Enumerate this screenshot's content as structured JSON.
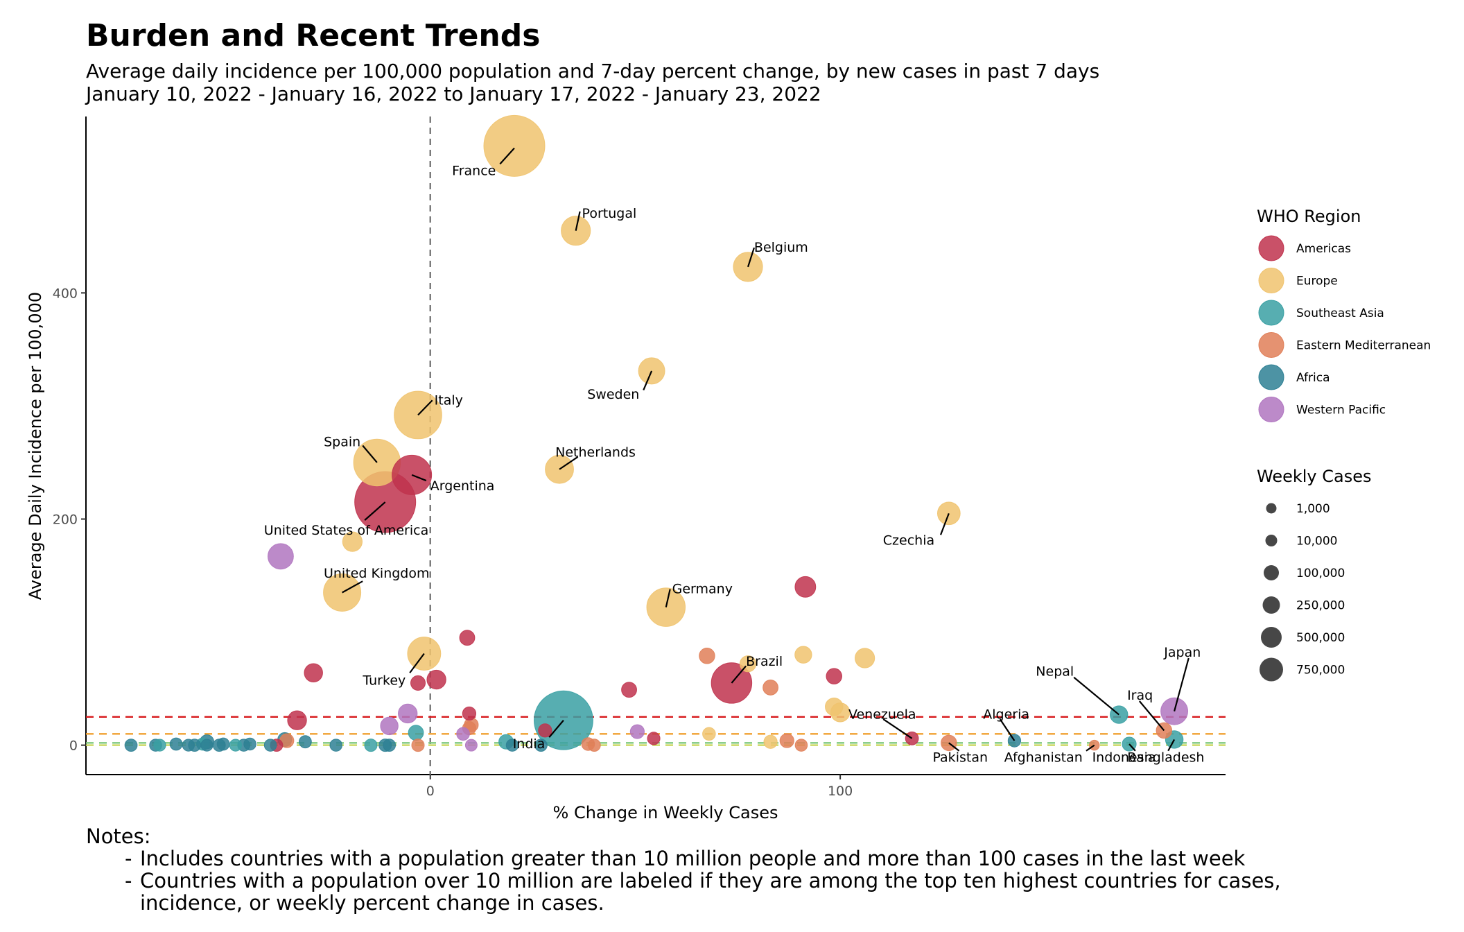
{
  "title": "Burden and Recent Trends",
  "subtitle_line1": "Average daily incidence per 100,000 population and 7-day percent change, by new cases in past 7 days",
  "subtitle_line2": "January 10, 2022 - January 16, 2022 to January 17, 2022 - January 23, 2022",
  "notes": {
    "heading": "Notes:",
    "items": [
      "Includes countries with a population greater than 10 million people and more than 100 cases in the last week",
      "Countries with a population over 10 million are labeled if they are among the top ten highest countries for cases, incidence, or weekly percent change in cases."
    ]
  },
  "chart_data": {
    "type": "scatter",
    "xlabel": "% Change in Weekly Cases",
    "ylabel": "Average Daily Incidence per 100,000",
    "xlim": [
      -84,
      194
    ],
    "ylim": [
      -26,
      556
    ],
    "xticks": [
      0,
      100
    ],
    "yticks": [
      0,
      200,
      400
    ],
    "grid": false,
    "vertical_reference": {
      "x": 0,
      "color": "#777777",
      "style": "dashed"
    },
    "horizontal_references": [
      {
        "y": 25,
        "color": "#d7191c"
      },
      {
        "y": 10,
        "color": "#f0a030"
      },
      {
        "y": 2,
        "color": "#7fc97f"
      },
      {
        "y": 0,
        "color": "#c8d65c"
      }
    ],
    "legend_position": "right",
    "region_legend": {
      "title": "WHO Region",
      "items": [
        {
          "name": "Americas",
          "color": "#c0334d"
        },
        {
          "name": "Europe",
          "color": "#f0c36e"
        },
        {
          "name": "Southeast Asia",
          "color": "#39a0a3"
        },
        {
          "name": "Eastern Mediterranean",
          "color": "#e07f58"
        },
        {
          "name": "Africa",
          "color": "#2e8094"
        },
        {
          "name": "Western Pacific",
          "color": "#b075c0"
        }
      ]
    },
    "size_legend": {
      "title": "Weekly Cases",
      "items": [
        {
          "label": "1,000",
          "value": 1000
        },
        {
          "label": "10,000",
          "value": 10000
        },
        {
          "label": "100,000",
          "value": 100000
        },
        {
          "label": "250,000",
          "value": 250000
        },
        {
          "label": "500,000",
          "value": 500000
        },
        {
          "label": "750,000",
          "value": 750000
        }
      ]
    },
    "points": [
      {
        "label": "France",
        "x": 20.5,
        "y": 530,
        "cases": 2500000,
        "region": "Europe"
      },
      {
        "label": "Portugal",
        "x": 35.5,
        "y": 455,
        "cases": 330000,
        "region": "Europe"
      },
      {
        "label": "Belgium",
        "x": 77.5,
        "y": 423,
        "cases": 330000,
        "region": "Europe"
      },
      {
        "label": "Sweden",
        "x": 54,
        "y": 331,
        "cases": 240000,
        "region": "Europe"
      },
      {
        "label": "Italy",
        "x": -3,
        "y": 292,
        "cases": 1200000,
        "region": "Europe"
      },
      {
        "label": "Spain",
        "x": -13,
        "y": 250,
        "cases": 1150000,
        "region": "Europe"
      },
      {
        "label": "Netherlands",
        "x": 31.5,
        "y": 244,
        "cases": 300000,
        "region": "Europe"
      },
      {
        "label": "Argentina",
        "x": -4.5,
        "y": 239,
        "cases": 750000,
        "region": "Americas"
      },
      {
        "label": "United States of America",
        "x": -11,
        "y": 215,
        "cases": 4900000,
        "region": "Americas"
      },
      {
        "label": "Czechia",
        "x": 126.5,
        "y": 205,
        "cases": 150000,
        "region": "Europe"
      },
      {
        "label": "United Kingdom",
        "x": -21.5,
        "y": 135,
        "cases": 650000,
        "region": "Europe"
      },
      {
        "label": "Germany",
        "x": 57.5,
        "y": 122,
        "cases": 700000,
        "region": "Europe"
      },
      {
        "label": "Turkey",
        "x": -1.5,
        "y": 81,
        "cases": 470000,
        "region": "Europe"
      },
      {
        "label": "Brazil",
        "x": 73.5,
        "y": 55,
        "cases": 800000,
        "region": "Americas"
      },
      {
        "label": "India",
        "x": 32.5,
        "y": 22,
        "cases": 2000000,
        "region": "Southeast Asia"
      },
      {
        "label": "Venezuela",
        "x": 117.5,
        "y": 6,
        "cases": 13000,
        "region": "Americas"
      },
      {
        "label": "Pakistan",
        "x": 126.5,
        "y": 2,
        "cases": 35000,
        "region": "Eastern Mediterranean"
      },
      {
        "label": "Algeria",
        "x": 142.5,
        "y": 4,
        "cases": 11000,
        "region": "Africa"
      },
      {
        "label": "Afghanistan",
        "x": 162,
        "y": 0,
        "cases": 900,
        "region": "Eastern Mediterranean"
      },
      {
        "label": "Nepal",
        "x": 168,
        "y": 27,
        "cases": 60000,
        "region": "Southeast Asia"
      },
      {
        "label": "Indonesia",
        "x": 170.5,
        "y": 1,
        "cases": 20000,
        "region": "Southeast Asia"
      },
      {
        "label": "Iraq",
        "x": 179,
        "y": 13,
        "cases": 35000,
        "region": "Eastern Mediterranean"
      },
      {
        "label": "Japan",
        "x": 181.5,
        "y": 30,
        "cases": 260000,
        "region": "Western Pacific"
      },
      {
        "label": "Bangladesh",
        "x": 181.5,
        "y": 5,
        "cases": 60000,
        "region": "Southeast Asia"
      },
      {
        "label": "",
        "x": -36.5,
        "y": 167,
        "cases": 220000,
        "region": "Western Pacific"
      },
      {
        "label": "",
        "x": -19,
        "y": 180,
        "cases": 90000,
        "region": "Europe"
      },
      {
        "label": "",
        "x": 9,
        "y": 95,
        "cases": 30000,
        "region": "Americas"
      },
      {
        "label": "",
        "x": -28.5,
        "y": 64,
        "cases": 70000,
        "region": "Americas"
      },
      {
        "label": "",
        "x": 1.5,
        "y": 58,
        "cases": 80000,
        "region": "Americas"
      },
      {
        "label": "",
        "x": -3,
        "y": 55,
        "cases": 25000,
        "region": "Americas"
      },
      {
        "label": "",
        "x": 91.5,
        "y": 140,
        "cases": 110000,
        "region": "Americas"
      },
      {
        "label": "",
        "x": 91,
        "y": 80,
        "cases": 50000,
        "region": "Europe"
      },
      {
        "label": "",
        "x": 106,
        "y": 77,
        "cases": 90000,
        "region": "Europe"
      },
      {
        "label": "",
        "x": 67.5,
        "y": 79,
        "cases": 35000,
        "region": "Eastern Mediterranean"
      },
      {
        "label": "",
        "x": 77.5,
        "y": 72,
        "cases": 40000,
        "region": "Europe"
      },
      {
        "label": "",
        "x": 98.5,
        "y": 61,
        "cases": 35000,
        "region": "Americas"
      },
      {
        "label": "",
        "x": 83,
        "y": 51,
        "cases": 30000,
        "region": "Eastern Mediterranean"
      },
      {
        "label": "",
        "x": 48.5,
        "y": 49,
        "cases": 30000,
        "region": "Americas"
      },
      {
        "label": "",
        "x": 98.5,
        "y": 34,
        "cases": 60000,
        "region": "Europe"
      },
      {
        "label": "",
        "x": 100,
        "y": 29,
        "cases": 80000,
        "region": "Europe"
      },
      {
        "label": "",
        "x": -32.5,
        "y": 22,
        "cases": 80000,
        "region": "Americas"
      },
      {
        "label": "",
        "x": -5.5,
        "y": 28,
        "cases": 80000,
        "region": "Western Pacific"
      },
      {
        "label": "",
        "x": -10,
        "y": 17,
        "cases": 60000,
        "region": "Western Pacific"
      },
      {
        "label": "",
        "x": 9.5,
        "y": 28,
        "cases": 15000,
        "region": "Americas"
      },
      {
        "label": "",
        "x": 10,
        "y": 18,
        "cases": 20000,
        "region": "Eastern Mediterranean"
      },
      {
        "label": "",
        "x": 9.5,
        "y": 15,
        "cases": 15000,
        "region": "Eastern Mediterranean"
      },
      {
        "label": "",
        "x": 8,
        "y": 10,
        "cases": 12000,
        "region": "Western Pacific"
      },
      {
        "label": "",
        "x": -3.5,
        "y": 11,
        "cases": 30000,
        "region": "Southeast Asia"
      },
      {
        "label": "",
        "x": 50.5,
        "y": 12,
        "cases": 20000,
        "region": "Western Pacific"
      },
      {
        "label": "",
        "x": 28,
        "y": 13,
        "cases": 15000,
        "region": "Americas"
      },
      {
        "label": "",
        "x": 68,
        "y": 10,
        "cases": 12000,
        "region": "Europe"
      },
      {
        "label": "",
        "x": 54.5,
        "y": 6,
        "cases": 10000,
        "region": "Americas"
      },
      {
        "label": "",
        "x": 87,
        "y": 4,
        "cases": 20000,
        "region": "Eastern Mediterranean"
      },
      {
        "label": "",
        "x": 83,
        "y": 3,
        "cases": 15000,
        "region": "Europe"
      },
      {
        "label": "",
        "x": 90.5,
        "y": 0,
        "cases": 8000,
        "region": "Eastern Mediterranean"
      },
      {
        "label": "",
        "x": 18.5,
        "y": 3,
        "cases": 25000,
        "region": "Southeast Asia"
      },
      {
        "label": "",
        "x": 20,
        "y": 0,
        "cases": 8000,
        "region": "Africa"
      },
      {
        "label": "",
        "x": 27,
        "y": 0,
        "cases": 9000,
        "region": "Africa"
      },
      {
        "label": "",
        "x": 38.5,
        "y": 1,
        "cases": 12000,
        "region": "Eastern Mediterranean"
      },
      {
        "label": "",
        "x": 40,
        "y": 0,
        "cases": 9000,
        "region": "Eastern Mediterranean"
      },
      {
        "label": "",
        "x": 10,
        "y": 0,
        "cases": 6000,
        "region": "Western Pacific"
      },
      {
        "label": "",
        "x": -3,
        "y": 0,
        "cases": 10000,
        "region": "Eastern Mediterranean"
      },
      {
        "label": "",
        "x": -14.5,
        "y": 0,
        "cases": 10000,
        "region": "Southeast Asia"
      },
      {
        "label": "",
        "x": -11,
        "y": 0,
        "cases": 10000,
        "region": "Africa"
      },
      {
        "label": "",
        "x": -10,
        "y": 0,
        "cases": 9000,
        "region": "Africa"
      },
      {
        "label": "",
        "x": -23,
        "y": 0,
        "cases": 8000,
        "region": "Africa"
      },
      {
        "label": "",
        "x": -30.5,
        "y": 3,
        "cases": 9000,
        "region": "Africa"
      },
      {
        "label": "",
        "x": -35.5,
        "y": 5,
        "cases": 20000,
        "region": "Africa"
      },
      {
        "label": "",
        "x": -35,
        "y": 4,
        "cases": 20000,
        "region": "Eastern Mediterranean"
      },
      {
        "label": "",
        "x": -37.5,
        "y": 0,
        "cases": 9000,
        "region": "Americas"
      },
      {
        "label": "",
        "x": -39,
        "y": 0,
        "cases": 8000,
        "region": "Africa"
      },
      {
        "label": "",
        "x": -44,
        "y": 1,
        "cases": 8000,
        "region": "Africa"
      },
      {
        "label": "",
        "x": -45.5,
        "y": 0,
        "cases": 8000,
        "region": "Africa"
      },
      {
        "label": "",
        "x": -47.5,
        "y": 0,
        "cases": 7000,
        "region": "Southeast Asia"
      },
      {
        "label": "",
        "x": -50.5,
        "y": 1,
        "cases": 9000,
        "region": "Africa"
      },
      {
        "label": "",
        "x": -51.5,
        "y": 0,
        "cases": 9000,
        "region": "Africa"
      },
      {
        "label": "",
        "x": -54.5,
        "y": 0,
        "cases": 7000,
        "region": "Africa"
      },
      {
        "label": "",
        "x": -54.5,
        "y": 3,
        "cases": 20000,
        "region": "Africa"
      },
      {
        "label": "",
        "x": -55.5,
        "y": 1,
        "cases": 9000,
        "region": "Southeast Asia"
      },
      {
        "label": "",
        "x": -57.5,
        "y": 0,
        "cases": 9000,
        "region": "Africa"
      },
      {
        "label": "",
        "x": -59,
        "y": 0,
        "cases": 7000,
        "region": "Africa"
      },
      {
        "label": "",
        "x": -62,
        "y": 1,
        "cases": 9000,
        "region": "Africa"
      },
      {
        "label": "",
        "x": -66,
        "y": 0,
        "cases": 7000,
        "region": "Southeast Asia"
      },
      {
        "label": "",
        "x": -67,
        "y": 0,
        "cases": 8000,
        "region": "Africa"
      },
      {
        "label": "",
        "x": -73,
        "y": 0,
        "cases": 9000,
        "region": "Africa"
      }
    ],
    "labels": [
      {
        "text": "France",
        "x": 16,
        "y": 508,
        "anchor": "end",
        "lx1": 20.5,
        "ly1": 528,
        "lx2": 17,
        "ly2": 514
      },
      {
        "text": "Portugal",
        "x": 37,
        "y": 470,
        "anchor": "start",
        "lx1": 35.5,
        "ly1": 455,
        "lx2": 36.5,
        "ly2": 472
      },
      {
        "text": "Belgium",
        "x": 79,
        "y": 440,
        "anchor": "start",
        "lx1": 77.5,
        "ly1": 423,
        "lx2": 79,
        "ly2": 440
      },
      {
        "text": "Sweden",
        "x": 51,
        "y": 310,
        "anchor": "end",
        "lx1": 54,
        "ly1": 331,
        "lx2": 52,
        "ly2": 314
      },
      {
        "text": "Italy",
        "x": 1,
        "y": 305,
        "anchor": "start",
        "lx1": -3,
        "ly1": 292,
        "lx2": 0.5,
        "ly2": 305
      },
      {
        "text": "Spain",
        "x": -17,
        "y": 268,
        "anchor": "end",
        "lx1": -13,
        "ly1": 250,
        "lx2": -16.5,
        "ly2": 265
      },
      {
        "text": "Netherlands",
        "x": 30.5,
        "y": 259,
        "anchor": "start",
        "lx1": 31.5,
        "ly1": 244,
        "lx2": 36,
        "ly2": 255
      },
      {
        "text": "Argentina",
        "x": 0,
        "y": 229,
        "anchor": "start",
        "lx1": -4.5,
        "ly1": 239,
        "lx2": -1,
        "ly2": 234
      },
      {
        "text": "United States of America",
        "x": -20.5,
        "y": 190,
        "anchor": "middle",
        "lx1": -11,
        "ly1": 215,
        "lx2": -16,
        "ly2": 199
      },
      {
        "text": "Czechia",
        "x": 123,
        "y": 181,
        "anchor": "end",
        "lx1": 126.5,
        "ly1": 205,
        "lx2": 124.5,
        "ly2": 186
      },
      {
        "text": "United Kingdom",
        "x": -26,
        "y": 152,
        "anchor": "start",
        "lx1": -21.5,
        "ly1": 135,
        "lx2": -16.5,
        "ly2": 145
      },
      {
        "text": "Germany",
        "x": 59,
        "y": 138,
        "anchor": "start",
        "lx1": 57.5,
        "ly1": 122,
        "lx2": 58.5,
        "ly2": 138
      },
      {
        "text": "Turkey",
        "x": -6,
        "y": 57,
        "anchor": "end",
        "lx1": -1.5,
        "ly1": 81,
        "lx2": -5,
        "ly2": 64
      },
      {
        "text": "Brazil",
        "x": 77,
        "y": 74,
        "anchor": "start",
        "lx1": 73.5,
        "ly1": 55,
        "lx2": 77,
        "ly2": 70
      },
      {
        "text": "India",
        "x": 28,
        "y": 1,
        "anchor": "end",
        "lx1": 32.5,
        "ly1": 22,
        "lx2": 29,
        "ly2": 7
      },
      {
        "text": "Venezuela",
        "x": 102,
        "y": 27,
        "anchor": "start",
        "lx1": 117.5,
        "ly1": 6,
        "lx2": 110.5,
        "ly2": 23
      },
      {
        "text": "Pakistan",
        "x": 136,
        "y": -11,
        "anchor": "end",
        "lx1": 126.5,
        "ly1": 2,
        "lx2": 129,
        "ly2": -5
      },
      {
        "text": "Algeria",
        "x": 140.5,
        "y": 27,
        "anchor": "middle",
        "lx1": 142.5,
        "ly1": 4,
        "lx2": 139,
        "ly2": 23
      },
      {
        "text": "Afghanistan",
        "x": 140,
        "y": -11,
        "anchor": "start",
        "lx1": 162,
        "ly1": 0,
        "lx2": 160,
        "ly2": -5
      },
      {
        "text": "Nepal",
        "x": 157,
        "y": 65,
        "anchor": "end",
        "lx1": 168,
        "ly1": 27,
        "lx2": 157,
        "ly2": 60
      },
      {
        "text": "Indonesia",
        "x": 177,
        "y": -11,
        "anchor": "end",
        "lx1": 170.5,
        "ly1": 1,
        "lx2": 172,
        "ly2": -5
      },
      {
        "text": "Iraq",
        "x": 170,
        "y": 44,
        "anchor": "start",
        "lx1": 179,
        "ly1": 13,
        "lx2": 173,
        "ly2": 39
      },
      {
        "text": "Japan",
        "x": 179,
        "y": 82,
        "anchor": "start",
        "lx1": 181.5,
        "ly1": 30,
        "lx2": 185,
        "ly2": 77
      },
      {
        "text": "Bangladesh",
        "x": 170,
        "y": -11,
        "anchor": "start",
        "lx1": 181.5,
        "ly1": 5,
        "lx2": 180,
        "ly2": -5
      }
    ]
  }
}
